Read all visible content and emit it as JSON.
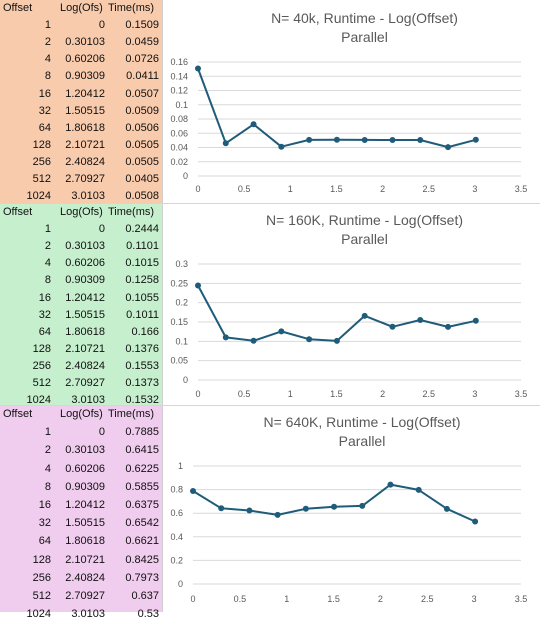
{
  "colors": {
    "panel1": "#f8cbad",
    "panel2": "#c6efce",
    "panel3": "#f0cdee",
    "series": "#1f5c7a",
    "grid": "#d9d9d9"
  },
  "panels": [
    {
      "table": {
        "headers": [
          "Offset",
          "Log(Ofs)",
          "Time(ms)"
        ],
        "rows": [
          [
            "1",
            "0",
            "0.1509"
          ],
          [
            "2",
            "0.30103",
            "0.0459"
          ],
          [
            "4",
            "0.60206",
            "0.0726"
          ],
          [
            "8",
            "0.90309",
            "0.0411"
          ],
          [
            "16",
            "1.20412",
            "0.0507"
          ],
          [
            "32",
            "1.50515",
            "0.0509"
          ],
          [
            "64",
            "1.80618",
            "0.0506"
          ],
          [
            "128",
            "2.10721",
            "0.0505"
          ],
          [
            "256",
            "2.40824",
            "0.0505"
          ],
          [
            "512",
            "2.70927",
            "0.0405"
          ],
          [
            "1024",
            "3.0103",
            "0.0508"
          ]
        ]
      },
      "chart_data": {
        "type": "line",
        "title": [
          "N= 40k, Runtime - Log(Offset)",
          "Parallel"
        ],
        "x": [
          0,
          0.30103,
          0.60206,
          0.90309,
          1.20412,
          1.50515,
          1.80618,
          2.10721,
          2.40824,
          2.70927,
          3.0103
        ],
        "y": [
          0.1509,
          0.0459,
          0.0726,
          0.0411,
          0.0507,
          0.0509,
          0.0506,
          0.0505,
          0.0505,
          0.0405,
          0.0508
        ],
        "xlim": [
          0,
          3.5
        ],
        "ylim": [
          0,
          0.16
        ],
        "xticks": [
          "0",
          "0.5",
          "1",
          "1.5",
          "2",
          "2.5",
          "3",
          "3.5"
        ],
        "yticks": [
          "0",
          "0.02",
          "0.04",
          "0.06",
          "0.08",
          "0.1",
          "0.12",
          "0.14",
          "0.16"
        ],
        "grid": true
      }
    },
    {
      "table": {
        "headers": [
          "Offset",
          "Log(Ofs)",
          "Time(ms)"
        ],
        "rows": [
          [
            "1",
            "0",
            "0.2444"
          ],
          [
            "2",
            "0.30103",
            "0.1101"
          ],
          [
            "4",
            "0.60206",
            "0.1015"
          ],
          [
            "8",
            "0.90309",
            "0.1258"
          ],
          [
            "16",
            "1.20412",
            "0.1055"
          ],
          [
            "32",
            "1.50515",
            "0.1011"
          ],
          [
            "64",
            "1.80618",
            "0.166"
          ],
          [
            "128",
            "2.10721",
            "0.1376"
          ],
          [
            "256",
            "2.40824",
            "0.1553"
          ],
          [
            "512",
            "2.70927",
            "0.1373"
          ],
          [
            "1024",
            "3.0103",
            "0.1532"
          ]
        ]
      },
      "chart_data": {
        "type": "line",
        "title": [
          "N= 160K, Runtime - Log(Offset)",
          "Parallel"
        ],
        "x": [
          0,
          0.30103,
          0.60206,
          0.90309,
          1.20412,
          1.50515,
          1.80618,
          2.10721,
          2.40824,
          2.70927,
          3.0103
        ],
        "y": [
          0.2444,
          0.1101,
          0.1015,
          0.1258,
          0.1055,
          0.1011,
          0.166,
          0.1376,
          0.1553,
          0.1373,
          0.1532
        ],
        "xlim": [
          0,
          3.5
        ],
        "ylim": [
          0,
          0.3
        ],
        "xticks": [
          "0",
          "0.5",
          "1",
          "1.5",
          "2",
          "2.5",
          "3",
          "3.5"
        ],
        "yticks": [
          "0",
          "0.05",
          "0.1",
          "0.15",
          "0.2",
          "0.25",
          "0.3"
        ],
        "grid": true
      }
    },
    {
      "table": {
        "headers": [
          "Offset",
          "Log(Ofs)",
          "Time(ms)"
        ],
        "rows": [
          [
            "1",
            "0",
            "0.7885"
          ],
          [
            "2",
            "0.30103",
            "0.6415"
          ],
          [
            "4",
            "0.60206",
            "0.6225"
          ],
          [
            "8",
            "0.90309",
            "0.5855"
          ],
          [
            "16",
            "1.20412",
            "0.6375"
          ],
          [
            "32",
            "1.50515",
            "0.6542"
          ],
          [
            "64",
            "1.80618",
            "0.6621"
          ],
          [
            "128",
            "2.10721",
            "0.8425"
          ],
          [
            "256",
            "2.40824",
            "0.7973"
          ],
          [
            "512",
            "2.70927",
            "0.637"
          ],
          [
            "1024",
            "3.0103",
            "0.53"
          ]
        ]
      },
      "chart_data": {
        "type": "line",
        "title": [
          "N= 640K, Runtime - Log(Offset)",
          "Parallel"
        ],
        "x": [
          0,
          0.30103,
          0.60206,
          0.90309,
          1.20412,
          1.50515,
          1.80618,
          2.10721,
          2.40824,
          2.70927,
          3.0103
        ],
        "y": [
          0.7885,
          0.6415,
          0.6225,
          0.5855,
          0.6375,
          0.6542,
          0.6621,
          0.8425,
          0.7973,
          0.637,
          0.53
        ],
        "xlim": [
          0,
          3.5
        ],
        "ylim": [
          0,
          1
        ],
        "xticks": [
          "0",
          "0.5",
          "1",
          "1.5",
          "2",
          "2.5",
          "3",
          "3.5"
        ],
        "yticks": [
          "0",
          "0.2",
          "0.4",
          "0.6",
          "0.8",
          "1"
        ],
        "grid": true
      }
    }
  ]
}
